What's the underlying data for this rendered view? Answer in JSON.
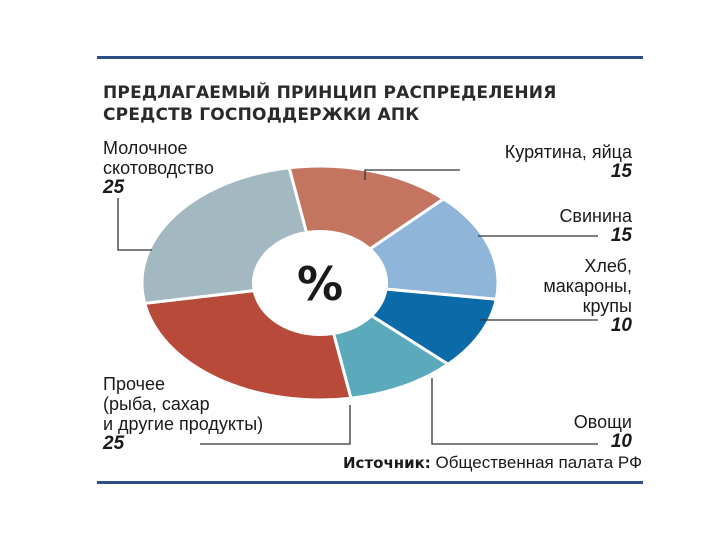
{
  "chart_data": {
    "type": "pie",
    "title_lines": [
      "Предлагаемый принцип распределения",
      "средств господдержки АПК"
    ],
    "center_label": "%",
    "slices": [
      {
        "label_lines": [
          "Курятина, яйца"
        ],
        "value": 15,
        "color": "#c47560"
      },
      {
        "label_lines": [
          "Свинина"
        ],
        "value": 15,
        "color": "#8fb5d8"
      },
      {
        "label_lines": [
          "Хлеб,",
          "макароны,",
          "крупы"
        ],
        "value": 10,
        "color": "#0b6aa8"
      },
      {
        "label_lines": [
          "Овощи"
        ],
        "value": 10,
        "color": "#5aaabc"
      },
      {
        "label_lines": [
          "Прочее",
          "(рыба, сахар",
          "и другие продукты)"
        ],
        "value": 25,
        "color": "#b84a3a"
      },
      {
        "label_lines": [
          "Молочное",
          "скотоводство"
        ],
        "value": 25,
        "color": "#a3b9c2"
      }
    ],
    "source_label": "Источник:",
    "source_text": "Общественная палата РФ"
  }
}
